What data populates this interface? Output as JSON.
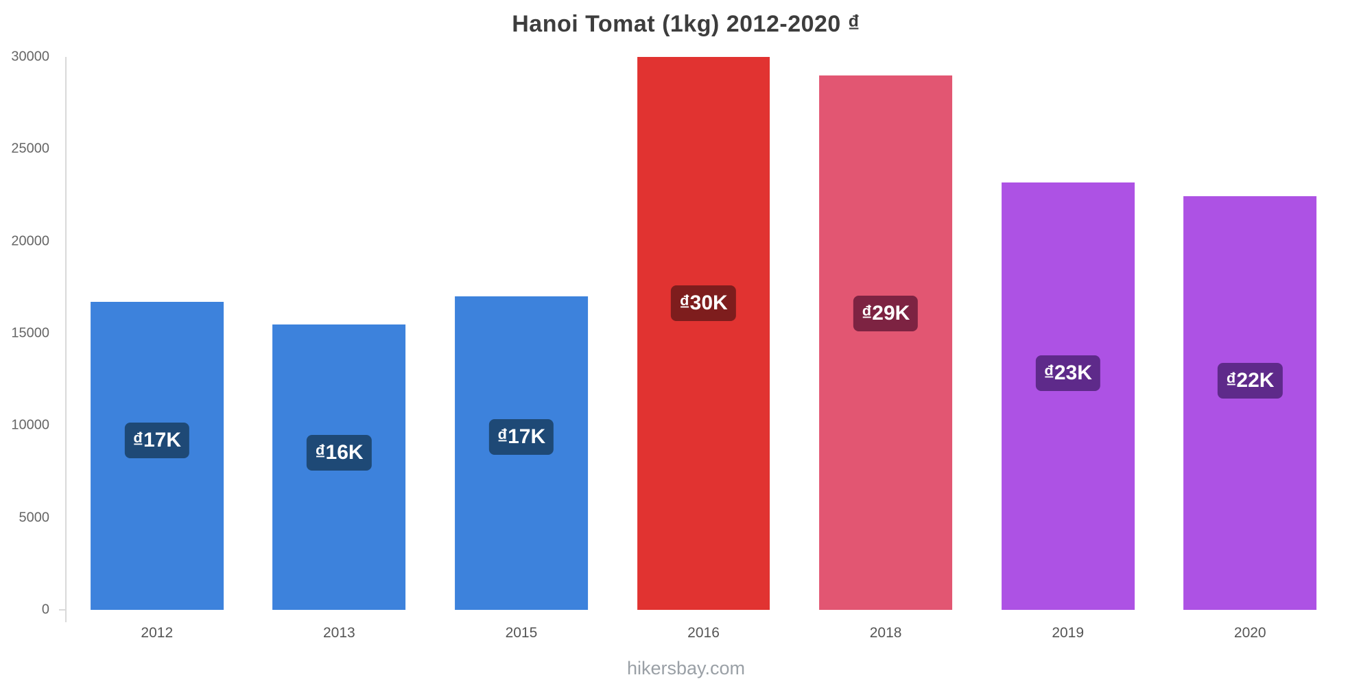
{
  "title": "Hanoi Tomat (1kg) 2012-2020 ₫",
  "footer": "hikersbay.com",
  "chart_data": {
    "type": "bar",
    "title": "Hanoi Tomat (1kg) 2012-2020 ₫",
    "categories": [
      "2012",
      "2013",
      "2015",
      "2016",
      "2018",
      "2019",
      "2020"
    ],
    "values": [
      16700,
      15500,
      17000,
      30000,
      29000,
      23200,
      22450
    ],
    "bar_labels": [
      "₫17K",
      "₫16K",
      "₫17K",
      "₫30K",
      "₫29K",
      "₫23K",
      "₫22K"
    ],
    "bar_colors": [
      "#3d82dc",
      "#3d82dc",
      "#3d82dc",
      "#e13331",
      "#e25672",
      "#ad52e4",
      "#ad52e4"
    ],
    "label_bg_colors": [
      "#1e4976",
      "#1e4976",
      "#1e4976",
      "#7e1d1d",
      "#7d2342",
      "#5e2a8a",
      "#5e2a8a"
    ],
    "xlabel": "",
    "ylabel": "",
    "ylim": [
      0,
      30000
    ],
    "yticks": [
      0,
      5000,
      10000,
      15000,
      20000,
      25000,
      30000
    ],
    "grid": false,
    "legend": false,
    "watermark": "hikersbay.com"
  }
}
